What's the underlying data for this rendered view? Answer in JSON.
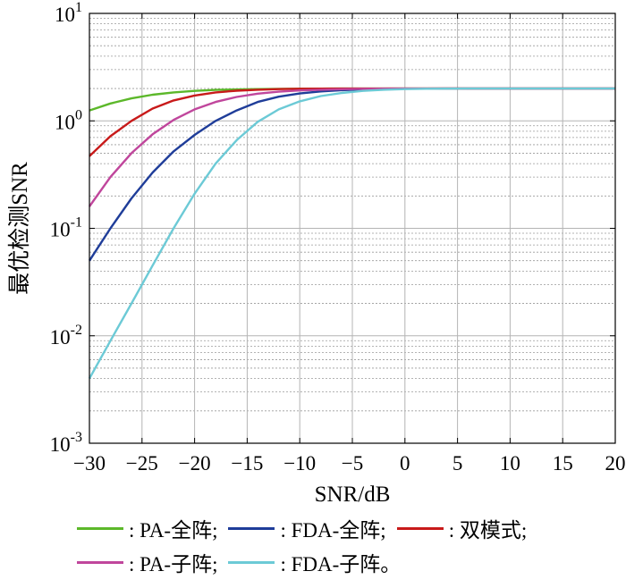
{
  "chart_data": {
    "type": "line",
    "xlabel": "SNR/dB",
    "ylabel": "最优检测SNR",
    "xscale": "linear",
    "yscale": "log",
    "xlim": [
      -30,
      20
    ],
    "ylim": [
      0.001,
      10
    ],
    "grid": true,
    "legend_position": "bottom",
    "x_ticks": [
      "−30",
      "−25",
      "−20",
      "−15",
      "−10",
      "−5",
      "0",
      "5",
      "10",
      "15",
      "20"
    ],
    "y_ticks": [
      {
        "base": "10",
        "exp": "-3"
      },
      {
        "base": "10",
        "exp": "-2"
      },
      {
        "base": "10",
        "exp": "-1"
      },
      {
        "base": "10",
        "exp": "0"
      },
      {
        "base": "10",
        "exp": "1"
      }
    ],
    "x": [
      -30,
      -28,
      -26,
      -24,
      -22,
      -20,
      -18,
      -16,
      -14,
      -12,
      -10,
      -8,
      -6,
      -4,
      -2,
      0,
      2,
      4,
      6,
      8,
      10,
      12,
      14,
      16,
      18,
      20
    ],
    "series": [
      {
        "name": ": PA-全阵;",
        "color": "#5cb82a",
        "values": [
          1.25,
          1.45,
          1.62,
          1.75,
          1.84,
          1.9,
          1.94,
          1.96,
          1.975,
          1.985,
          1.99,
          1.995,
          1.997,
          1.998,
          1.999,
          2.0,
          2.0,
          2.0,
          2.0,
          2.0,
          2.0,
          2.0,
          2.0,
          2.0,
          2.0,
          2.0
        ]
      },
      {
        "name": ": FDA-全阵;",
        "color": "#1f3d99",
        "values": [
          0.05,
          0.1,
          0.19,
          0.33,
          0.52,
          0.74,
          1.0,
          1.25,
          1.5,
          1.68,
          1.8,
          1.88,
          1.93,
          1.96,
          1.98,
          1.99,
          1.995,
          2.0,
          2.0,
          2.0,
          2.0,
          2.0,
          2.0,
          2.0,
          2.0,
          2.0
        ]
      },
      {
        "name": ": 双模式;",
        "color": "#c81a1a",
        "values": [
          0.47,
          0.72,
          1.0,
          1.3,
          1.55,
          1.72,
          1.84,
          1.91,
          1.95,
          1.975,
          1.99,
          1.995,
          2.0,
          2.0,
          2.0,
          2.0,
          2.0,
          2.0,
          2.0,
          2.0,
          2.0,
          2.0,
          2.0,
          2.0,
          2.0,
          2.0
        ]
      },
      {
        "name": ": PA-子阵;",
        "color": "#c0469c",
        "values": [
          0.16,
          0.3,
          0.5,
          0.75,
          1.02,
          1.28,
          1.5,
          1.67,
          1.79,
          1.87,
          1.92,
          1.95,
          1.97,
          1.985,
          1.993,
          1.997,
          2.0,
          2.0,
          2.0,
          2.0,
          2.0,
          2.0,
          2.0,
          2.0,
          2.0,
          2.0
        ]
      },
      {
        "name": ": FDA-子阵。",
        "color": "#6ccad6",
        "values": [
          0.004,
          0.009,
          0.02,
          0.045,
          0.1,
          0.21,
          0.4,
          0.66,
          0.98,
          1.28,
          1.52,
          1.7,
          1.82,
          1.9,
          1.95,
          1.975,
          1.99,
          1.995,
          2.0,
          2.0,
          2.0,
          2.0,
          2.0,
          2.0,
          2.0,
          2.0
        ]
      }
    ]
  }
}
